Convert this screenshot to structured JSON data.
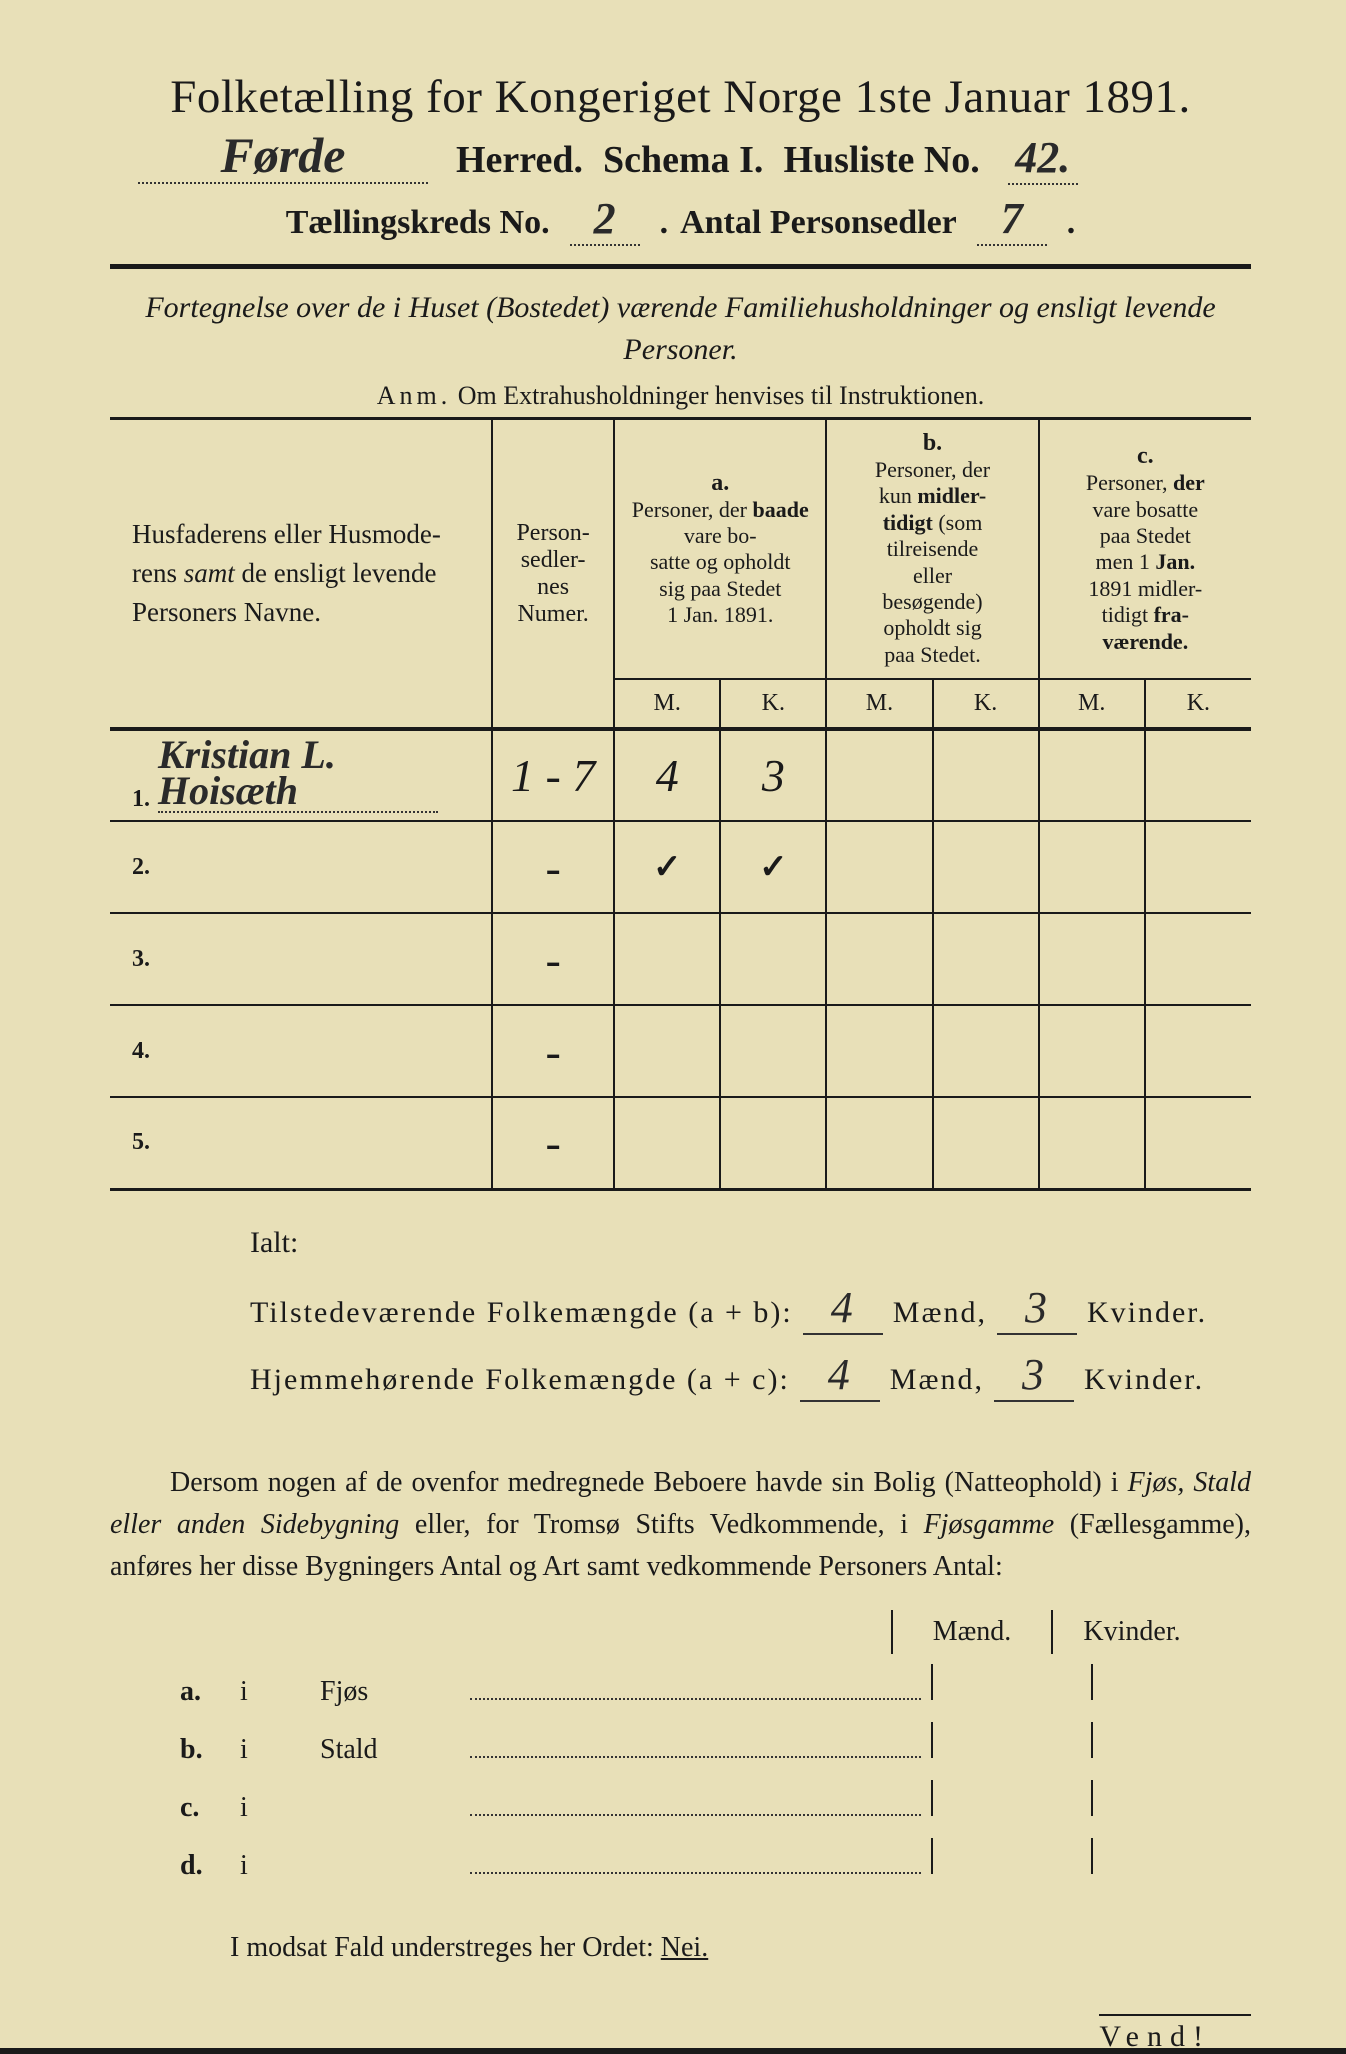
{
  "title": "Folketælling for Kongeriget Norge 1ste Januar 1891.",
  "header": {
    "herred_value": "Førde",
    "herred_label": "Herred.",
    "schema_label": "Schema I.",
    "husliste_label": "Husliste No.",
    "husliste_value": "42.",
    "kreds_label": "Tællingskreds No.",
    "kreds_value": "2",
    "antal_label": "Antal Personsedler",
    "antal_value": "7"
  },
  "subtitle": "Fortegnelse over de i Huset (Bostedet) værende Familiehusholdninger og ensligt levende Personer.",
  "anm_label": "Anm.",
  "anm_text": "Om Extrahusholdninger henvises til Instruktionen.",
  "table": {
    "col_names_header": "Husfaderens eller Husmoderens samt de ensligt levende Personers Navne.",
    "col_num_header": "Personsedlernes Numer.",
    "col_a_label": "a.",
    "col_a_desc": "Personer, der baade vare bosatte og opholdt sig paa Stedet 1 Jan. 1891.",
    "col_b_label": "b.",
    "col_b_desc": "Personer, der kun midlertidigt (som tilreisende eller besøgende) opholdt sig paa Stedet.",
    "col_c_label": "c.",
    "col_c_desc": "Personer, der vare bosatte paa Stedet men 1 Jan. 1891 midlertidigt fraværende.",
    "mk_m": "M.",
    "mk_k": "K.",
    "rows": [
      {
        "num": "1.",
        "name": "Kristian L. Hoisæth",
        "person_num": "1 - 7",
        "a_m": "4",
        "a_k": "3",
        "b_m": "",
        "b_k": "",
        "c_m": "",
        "c_k": ""
      },
      {
        "num": "2.",
        "name": "",
        "person_num": "-",
        "a_m": "✓",
        "a_k": "✓",
        "b_m": "",
        "b_k": "",
        "c_m": "",
        "c_k": ""
      },
      {
        "num": "3.",
        "name": "",
        "person_num": "-",
        "a_m": "",
        "a_k": "",
        "b_m": "",
        "b_k": "",
        "c_m": "",
        "c_k": ""
      },
      {
        "num": "4.",
        "name": "",
        "person_num": "-",
        "a_m": "",
        "a_k": "",
        "b_m": "",
        "b_k": "",
        "c_m": "",
        "c_k": ""
      },
      {
        "num": "5.",
        "name": "",
        "person_num": "-",
        "a_m": "",
        "a_k": "",
        "b_m": "",
        "b_k": "",
        "c_m": "",
        "c_k": ""
      }
    ]
  },
  "ialt": {
    "label": "Ialt:",
    "line1_label": "Tilstedeværende Folkemængde (a + b):",
    "line1_m": "4",
    "line1_k": "3",
    "line2_label": "Hjemmehørende Folkemængde (a + c):",
    "line2_m": "4",
    "line2_k": "3",
    "maend": "Mænd,",
    "kvinder": "Kvinder."
  },
  "dersom": {
    "text": "Dersom nogen af de ovenfor medregnede Beboere havde sin Bolig (Natteophold) i Fjøs, Stald eller anden Sidebygning eller, for Tromsø Stifts Vedkommende, i Fjøsgamme (Fællesgamme), anføres her disse Bygningers Antal og Art samt vedkommende Personers Antal:",
    "header_maend": "Mænd.",
    "header_kvinder": "Kvinder.",
    "rows": [
      {
        "label": "a.",
        "i": "i",
        "type": "Fjøs"
      },
      {
        "label": "b.",
        "i": "i",
        "type": "Stald"
      },
      {
        "label": "c.",
        "i": "i",
        "type": ""
      },
      {
        "label": "d.",
        "i": "i",
        "type": ""
      }
    ]
  },
  "modsat": "I modsat Fald understreges her Ordet:",
  "modsat_nei": "Nei.",
  "vend": "Vend!"
}
